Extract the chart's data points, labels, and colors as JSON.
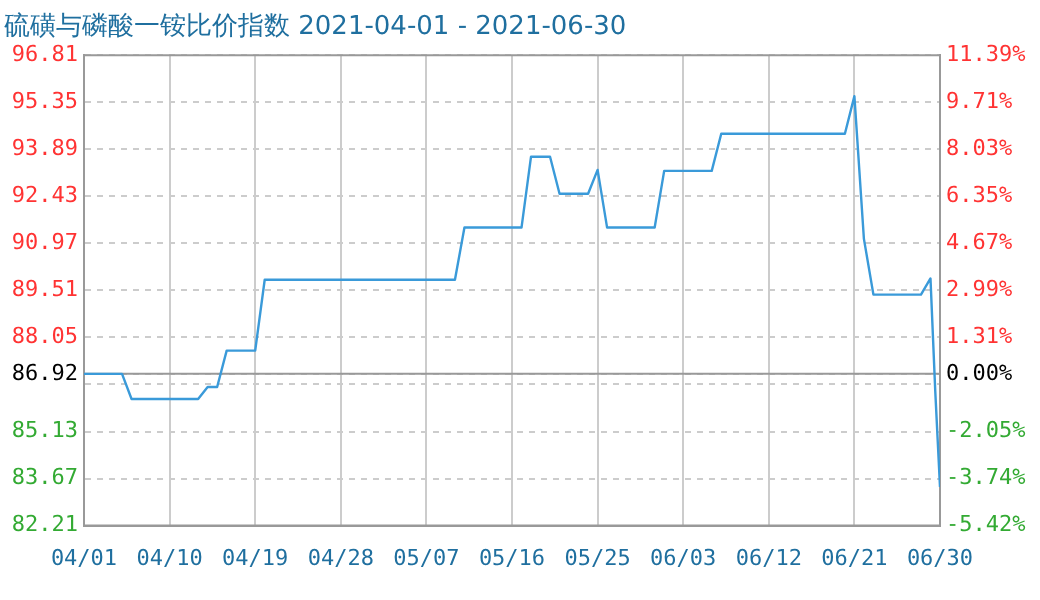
{
  "chart_data": {
    "type": "line",
    "title": "硫磺与磷酸一铵比价指数 2021-04-01 - 2021-06-30",
    "x": [
      "2021-04-01",
      "2021-04-05",
      "2021-04-06",
      "2021-04-13",
      "2021-04-14",
      "2021-04-15",
      "2021-04-16",
      "2021-04-19",
      "2021-04-20",
      "2021-05-10",
      "2021-05-11",
      "2021-05-17",
      "2021-05-18",
      "2021-05-20",
      "2021-05-21",
      "2021-05-24",
      "2021-05-25",
      "2021-05-26",
      "2021-05-31",
      "2021-06-01",
      "2021-06-06",
      "2021-06-07",
      "2021-06-20",
      "2021-06-21",
      "2021-06-22",
      "2021-06-23",
      "2021-06-28",
      "2021-06-29",
      "2021-06-29T12:00",
      "2021-06-30"
    ],
    "series": [
      {
        "color": "#3a9ad9",
        "values": [
          86.92,
          86.92,
          86.14,
          86.14,
          86.51,
          86.51,
          87.64,
          87.64,
          89.84,
          89.84,
          91.46,
          91.46,
          93.66,
          93.66,
          92.51,
          92.51,
          93.25,
          91.46,
          91.46,
          93.22,
          93.22,
          94.37,
          94.37,
          95.54,
          91.11,
          89.38,
          89.38,
          89.88,
          86.39,
          83.41
        ]
      }
    ],
    "xlim": [
      "2021-04-01",
      "2021-06-30"
    ],
    "xticks": [
      {
        "value": "2021-04-01",
        "label": "04/01"
      },
      {
        "value": "2021-04-10",
        "label": "04/10"
      },
      {
        "value": "2021-04-19",
        "label": "04/19"
      },
      {
        "value": "2021-04-28",
        "label": "04/28"
      },
      {
        "value": "2021-05-07",
        "label": "05/07"
      },
      {
        "value": "2021-05-16",
        "label": "05/16"
      },
      {
        "value": "2021-05-25",
        "label": "05/25"
      },
      {
        "value": "2021-06-03",
        "label": "06/03"
      },
      {
        "value": "2021-06-12",
        "label": "06/12"
      },
      {
        "value": "2021-06-21",
        "label": "06/21"
      },
      {
        "value": "2021-06-30",
        "label": "06/30"
      }
    ],
    "ylim": [
      82.21,
      96.81
    ],
    "yticks": [
      82.21,
      83.67,
      85.13,
      {
        "value": 86.59,
        "label": null
      },
      86.92,
      88.05,
      89.51,
      90.97,
      92.43,
      93.89,
      95.35,
      96.81
    ],
    "y2lim": [
      -5.42,
      11.39
    ],
    "y2ticks": [
      {
        "value": -5.42,
        "label": "-5.42%"
      },
      {
        "value": -3.74,
        "label": "-3.74%"
      },
      {
        "value": -2.05,
        "label": "-2.05%"
      },
      {
        "value": 0,
        "label": "0.00%"
      },
      {
        "value": 1.31,
        "label": "1.31%"
      },
      {
        "value": 2.99,
        "label": "2.99%"
      },
      {
        "value": 4.67,
        "label": "4.67%"
      },
      {
        "value": 6.35,
        "label": "6.35%"
      },
      {
        "value": 8.03,
        "label": "8.03%"
      },
      {
        "value": 9.71,
        "label": "9.71%"
      },
      {
        "value": 11.39,
        "label": "11.39%"
      }
    ],
    "ref_lines": [
      {
        "axis": "y",
        "value": 86.92,
        "color": "#999999"
      }
    ],
    "grid": true,
    "legend": false,
    "marker": "none",
    "line_style": "solid"
  }
}
